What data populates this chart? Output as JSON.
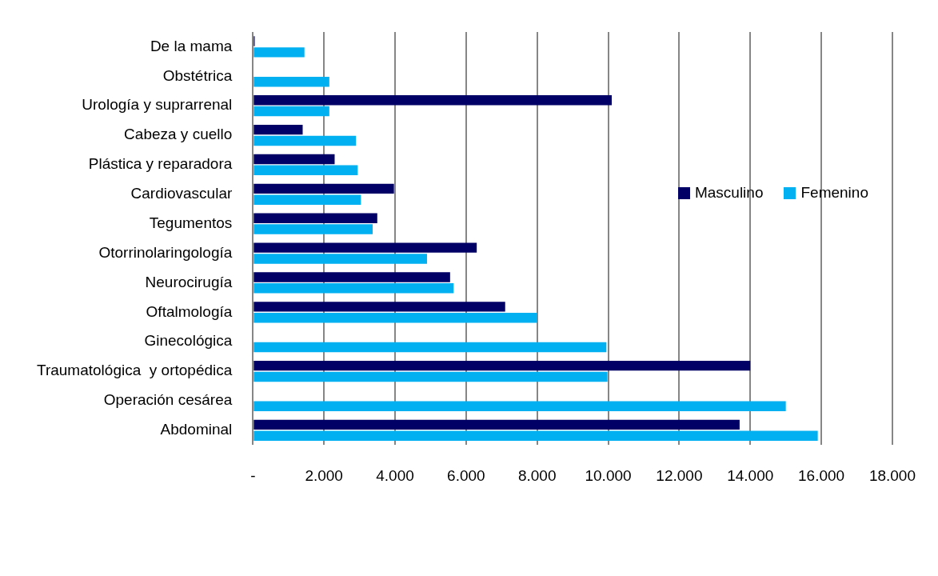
{
  "chart_data": {
    "type": "bar",
    "orientation": "horizontal",
    "categories": [
      "De la mama",
      "Obstétrica",
      "Urología y suprarrenal",
      "Cabeza y cuello",
      "Plástica y reparadora",
      "Cardiovascular",
      "Tegumentos",
      "Otorrinolaringología",
      "Neurocirugía",
      "Oftalmología",
      "Ginecológica",
      "Traumatológica  y ortopédica",
      "Operación cesárea",
      "Abdominal"
    ],
    "series": [
      {
        "name": "Masculino",
        "color": "#000066",
        "values": [
          50,
          null,
          10100,
          1400,
          2300,
          3970,
          3500,
          6300,
          5550,
          7100,
          null,
          14000,
          null,
          13700
        ]
      },
      {
        "name": "Femenino",
        "color": "#00b0f0",
        "values": [
          1450,
          2150,
          2150,
          2900,
          2950,
          3040,
          3370,
          4900,
          5650,
          8000,
          9950,
          9980,
          15000,
          15900
        ]
      }
    ],
    "xlim": [
      0,
      18000
    ],
    "xticks": [
      {
        "value": 0,
        "label": "-"
      },
      {
        "value": 2000,
        "label": "2.000"
      },
      {
        "value": 4000,
        "label": "4.000"
      },
      {
        "value": 6000,
        "label": "6.000"
      },
      {
        "value": 8000,
        "label": "8.000"
      },
      {
        "value": 10000,
        "label": "10.000"
      },
      {
        "value": 12000,
        "label": "12.000"
      },
      {
        "value": 14000,
        "label": "14.000"
      },
      {
        "value": 16000,
        "label": "16.000"
      },
      {
        "value": 18000,
        "label": "18.000"
      }
    ],
    "grid": "x",
    "legend": "right"
  }
}
